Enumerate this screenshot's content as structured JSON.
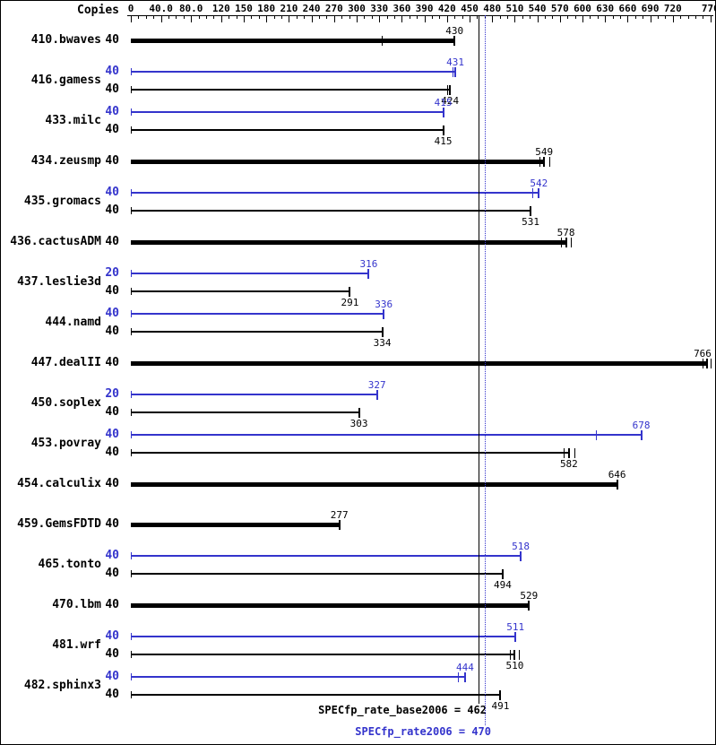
{
  "header": {
    "copies_label": "Copies"
  },
  "axis": {
    "minor_step": 10,
    "minor_max": 770,
    "major_labels": [
      {
        "value": 0,
        "label": "0"
      },
      {
        "value": 40,
        "label": "40.0"
      },
      {
        "value": 80,
        "label": "80.0"
      },
      {
        "value": 120,
        "label": "120"
      },
      {
        "value": 150,
        "label": "150"
      },
      {
        "value": 180,
        "label": "180"
      },
      {
        "value": 210,
        "label": "210"
      },
      {
        "value": 240,
        "label": "240"
      },
      {
        "value": 270,
        "label": "270"
      },
      {
        "value": 300,
        "label": "300"
      },
      {
        "value": 330,
        "label": "330"
      },
      {
        "value": 360,
        "label": "360"
      },
      {
        "value": 390,
        "label": "390"
      },
      {
        "value": 420,
        "label": "420"
      },
      {
        "value": 450,
        "label": "450"
      },
      {
        "value": 480,
        "label": "480"
      },
      {
        "value": 510,
        "label": "510"
      },
      {
        "value": 540,
        "label": "540"
      },
      {
        "value": 570,
        "label": "570"
      },
      {
        "value": 600,
        "label": "600"
      },
      {
        "value": 630,
        "label": "630"
      },
      {
        "value": 660,
        "label": "660"
      },
      {
        "value": 690,
        "label": "690"
      },
      {
        "value": 720,
        "label": "720"
      },
      {
        "value": 770,
        "label": "770"
      }
    ]
  },
  "summary": {
    "base_label": "SPECfp_rate_base2006 = 462",
    "base_value": 462,
    "peak_label": "SPECfp_rate2006 = 470",
    "peak_value": 470
  },
  "colors": {
    "base": "#000000",
    "peak": "#3434cc"
  },
  "chart_data": {
    "type": "bar",
    "orientation": "horizontal",
    "x_axis": {
      "min": 0,
      "max": 770,
      "minor_tick_step": 10
    },
    "legend": {
      "peak_color_meaning": "peak (SPECfp_rate2006)",
      "base_color_meaning": "base (SPECfp_rate_base2006)"
    },
    "benchmarks": [
      {
        "name": "410.bwaves",
        "bars": [
          {
            "kind": "base",
            "thick": true,
            "copies": 40,
            "value": 430,
            "run_ticks": [
              333
            ]
          }
        ]
      },
      {
        "name": "416.gamess",
        "bars": [
          {
            "kind": "peak",
            "copies": 40,
            "value": 431,
            "run_ticks": [
              427
            ]
          },
          {
            "kind": "base",
            "copies": 40,
            "value": 424,
            "run_ticks": [
              420
            ]
          }
        ]
      },
      {
        "name": "433.milc",
        "bars": [
          {
            "kind": "peak",
            "copies": 40,
            "value": 415
          },
          {
            "kind": "base",
            "copies": 40,
            "value": 415
          }
        ]
      },
      {
        "name": "434.zeusmp",
        "bars": [
          {
            "kind": "base",
            "thick": true,
            "copies": 40,
            "value": 549,
            "run_ticks": [
              543,
              556
            ]
          }
        ]
      },
      {
        "name": "435.gromacs",
        "bars": [
          {
            "kind": "peak",
            "copies": 40,
            "value": 542,
            "run_ticks": [
              533
            ]
          },
          {
            "kind": "base",
            "copies": 40,
            "value": 531
          }
        ]
      },
      {
        "name": "436.cactusADM",
        "bars": [
          {
            "kind": "base",
            "thick": true,
            "copies": 40,
            "value": 578,
            "run_ticks": [
              571,
              585
            ]
          }
        ]
      },
      {
        "name": "437.leslie3d",
        "bars": [
          {
            "kind": "peak",
            "copies": 20,
            "value": 316
          },
          {
            "kind": "base",
            "copies": 40,
            "value": 291
          }
        ]
      },
      {
        "name": "444.namd",
        "bars": [
          {
            "kind": "peak",
            "copies": 40,
            "value": 336
          },
          {
            "kind": "base",
            "copies": 40,
            "value": 334
          }
        ]
      },
      {
        "name": "447.dealII",
        "bars": [
          {
            "kind": "base",
            "thick": true,
            "copies": 40,
            "value": 766,
            "run_ticks": [
              759,
              770
            ]
          }
        ]
      },
      {
        "name": "450.soplex",
        "bars": [
          {
            "kind": "peak",
            "copies": 20,
            "value": 327
          },
          {
            "kind": "base",
            "copies": 40,
            "value": 303
          }
        ]
      },
      {
        "name": "453.povray",
        "bars": [
          {
            "kind": "peak",
            "copies": 40,
            "value": 678,
            "run_ticks": [
              618
            ]
          },
          {
            "kind": "base",
            "copies": 40,
            "value": 582,
            "run_ticks": [
              575,
              589
            ]
          }
        ]
      },
      {
        "name": "454.calculix",
        "bars": [
          {
            "kind": "base",
            "thick": true,
            "copies": 40,
            "value": 646
          }
        ]
      },
      {
        "name": "459.GemsFDTD",
        "bars": [
          {
            "kind": "base",
            "thick": true,
            "copies": 40,
            "value": 277
          }
        ]
      },
      {
        "name": "465.tonto",
        "bars": [
          {
            "kind": "peak",
            "copies": 40,
            "value": 518
          },
          {
            "kind": "base",
            "copies": 40,
            "value": 494
          }
        ]
      },
      {
        "name": "470.lbm",
        "bars": [
          {
            "kind": "base",
            "thick": true,
            "copies": 40,
            "value": 529
          }
        ]
      },
      {
        "name": "481.wrf",
        "bars": [
          {
            "kind": "peak",
            "copies": 40,
            "value": 511
          },
          {
            "kind": "base",
            "copies": 40,
            "value": 510,
            "run_ticks": [
              504,
              516
            ]
          }
        ]
      },
      {
        "name": "482.sphinx3",
        "bars": [
          {
            "kind": "peak",
            "copies": 40,
            "value": 444,
            "run_ticks": [
              434
            ]
          },
          {
            "kind": "base",
            "copies": 40,
            "value": 491
          }
        ]
      }
    ]
  }
}
